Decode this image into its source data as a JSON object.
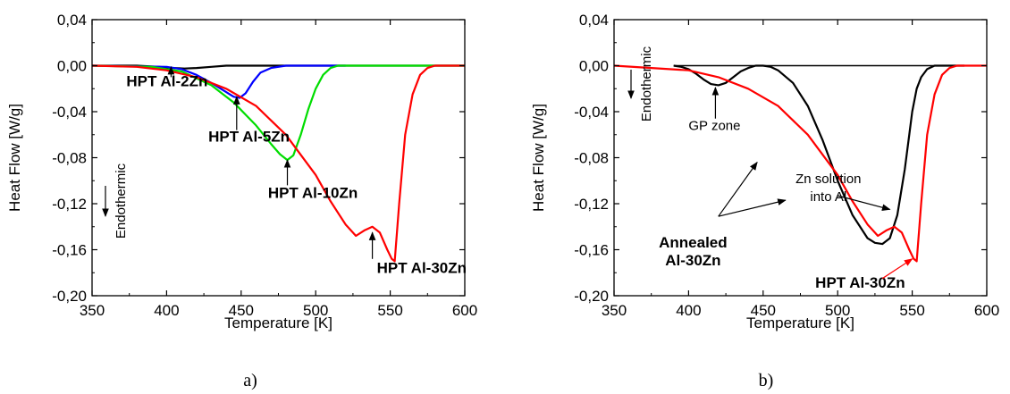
{
  "chart_data": [
    {
      "type": "line",
      "panel_label": "a)",
      "xlabel": "Temperature [K]",
      "ylabel": "Heat Flow [W/g]",
      "xlim": [
        350,
        600
      ],
      "ylim": [
        -0.2,
        0.04
      ],
      "xticks": [
        "350",
        "400",
        "450",
        "500",
        "550",
        "600"
      ],
      "yticks": [
        "0,04",
        "0,00",
        "-0,04",
        "-0,08",
        "-0,12",
        "-0,16",
        "-0,20"
      ],
      "endothermic_label": "Endothermic",
      "series": [
        {
          "color": "#000000",
          "x": [
            350,
            380,
            395,
            405,
            412,
            420,
            430,
            440,
            460,
            500,
            600
          ],
          "y": [
            0,
            0,
            -0.001,
            -0.002,
            -0.0025,
            -0.002,
            -0.001,
            0,
            0,
            0,
            0
          ]
        },
        {
          "color": "#0000ff",
          "x": [
            350,
            400,
            410,
            420,
            430,
            440,
            445,
            449,
            453,
            458,
            463,
            470,
            480,
            500,
            520
          ],
          "y": [
            0,
            -0.001,
            -0.003,
            -0.008,
            -0.015,
            -0.023,
            -0.027,
            -0.028,
            -0.024,
            -0.014,
            -0.006,
            -0.002,
            0,
            0,
            0
          ]
        },
        {
          "color": "#00dd00",
          "x": [
            350,
            390,
            410,
            430,
            445,
            460,
            470,
            476,
            481,
            485,
            490,
            495,
            500,
            505,
            510,
            515,
            520,
            600
          ],
          "y": [
            0,
            -0.001,
            -0.005,
            -0.017,
            -0.032,
            -0.052,
            -0.068,
            -0.077,
            -0.082,
            -0.078,
            -0.06,
            -0.038,
            -0.02,
            -0.008,
            -0.002,
            0,
            0,
            0
          ]
        },
        {
          "color": "#ff0000",
          "x": [
            350,
            380,
            400,
            420,
            440,
            460,
            480,
            500,
            510,
            520,
            527,
            533,
            538,
            543,
            548,
            551,
            553,
            556,
            560,
            565,
            570,
            575,
            580,
            590,
            600
          ],
          "y": [
            0,
            -0.001,
            -0.004,
            -0.01,
            -0.02,
            -0.035,
            -0.06,
            -0.095,
            -0.118,
            -0.138,
            -0.148,
            -0.143,
            -0.14,
            -0.145,
            -0.16,
            -0.168,
            -0.17,
            -0.12,
            -0.06,
            -0.025,
            -0.008,
            -0.002,
            0,
            0,
            0
          ]
        }
      ],
      "annotations": [
        {
          "text": "HPT Al-2Zn",
          "x": 373,
          "y": -0.018,
          "arrow_to": [
            403,
            -0.001
          ],
          "arrow_from": [
            403,
            -0.01
          ]
        },
        {
          "text": "HPT Al-5Zn",
          "x": 428,
          "y": -0.066,
          "arrow_to": [
            447,
            -0.027
          ],
          "arrow_from": [
            447,
            -0.056
          ]
        },
        {
          "text": "HPT Al-10Zn",
          "x": 468,
          "y": -0.115,
          "arrow_to": [
            481,
            -0.082
          ],
          "arrow_from": [
            481,
            -0.104
          ]
        },
        {
          "text": "HPT Al-30Zn",
          "x": 541,
          "y": -0.18,
          "arrow_to": [
            538,
            -0.145
          ],
          "arrow_from": [
            538,
            -0.168
          ]
        }
      ]
    },
    {
      "type": "line",
      "panel_label": "b)",
      "xlabel": "Temperature [K]",
      "ylabel": "Heat Flow [W/g]",
      "xlim": [
        350,
        600
      ],
      "ylim": [
        -0.2,
        0.04
      ],
      "xticks": [
        "350",
        "400",
        "450",
        "500",
        "550",
        "600"
      ],
      "yticks": [
        "0,04",
        "0,00",
        "-0,04",
        "-0,08",
        "-0,12",
        "-0,16",
        "-0,20"
      ],
      "endothermic_label": "Endothermic",
      "baseline": {
        "x": [
          390,
          600
        ],
        "y": [
          0,
          0
        ]
      },
      "series": [
        {
          "color": "#000000",
          "x": [
            390,
            395,
            400,
            405,
            410,
            415,
            420,
            425,
            430,
            435,
            440,
            445,
            450,
            455,
            460,
            470,
            480,
            490,
            500,
            510,
            520,
            525,
            530,
            535,
            540,
            545,
            548,
            550,
            553,
            556,
            560,
            565,
            570,
            580,
            585
          ],
          "y": [
            0,
            -0.001,
            -0.003,
            -0.007,
            -0.012,
            -0.016,
            -0.017,
            -0.015,
            -0.01,
            -0.005,
            -0.002,
            0,
            0,
            -0.001,
            -0.004,
            -0.015,
            -0.035,
            -0.065,
            -0.1,
            -0.13,
            -0.15,
            -0.154,
            -0.155,
            -0.15,
            -0.13,
            -0.09,
            -0.06,
            -0.04,
            -0.02,
            -0.01,
            -0.003,
            0,
            0,
            0,
            0
          ]
        },
        {
          "color": "#ff0000",
          "x": [
            350,
            400,
            420,
            440,
            460,
            480,
            500,
            510,
            520,
            527,
            533,
            538,
            543,
            548,
            551,
            553,
            556,
            560,
            565,
            570,
            575,
            580,
            590,
            600
          ],
          "y": [
            0,
            -0.004,
            -0.01,
            -0.02,
            -0.035,
            -0.06,
            -0.095,
            -0.118,
            -0.138,
            -0.148,
            -0.143,
            -0.14,
            -0.145,
            -0.16,
            -0.168,
            -0.17,
            -0.12,
            -0.06,
            -0.025,
            -0.008,
            -0.002,
            0,
            0,
            0
          ]
        }
      ],
      "annotations": [
        {
          "text": "GP zone",
          "x": 400,
          "y": -0.056,
          "arrows": [
            {
              "from": [
                418,
                -0.046
              ],
              "to": [
                418,
                -0.019
              ]
            }
          ]
        },
        {
          "lines": [
            "Zn solution",
            "into Al"
          ],
          "x": 471,
          "y": -0.102,
          "arrows": [
            {
              "from": [
                500,
                -0.113
              ],
              "to": [
                535,
                -0.125
              ]
            }
          ]
        },
        {
          "lines": [
            "Annealed",
            "Al-30Zn"
          ],
          "bold": true,
          "x": 385,
          "y": -0.158,
          "arrows": [
            {
              "from": [
                420,
                -0.131
              ],
              "to": [
                446,
                -0.084
              ]
            },
            {
              "from": [
                420,
                -0.131
              ],
              "to": [
                465,
                -0.117
              ]
            }
          ]
        },
        {
          "text": "HPT Al-30Zn",
          "bold": true,
          "color": "#ff0000",
          "x": 485,
          "y": -0.193,
          "arrows": [
            {
              "from": [
                530,
                -0.185
              ],
              "to": [
                550,
                -0.168
              ]
            }
          ],
          "arrow_color": "#ff0000"
        }
      ]
    }
  ]
}
